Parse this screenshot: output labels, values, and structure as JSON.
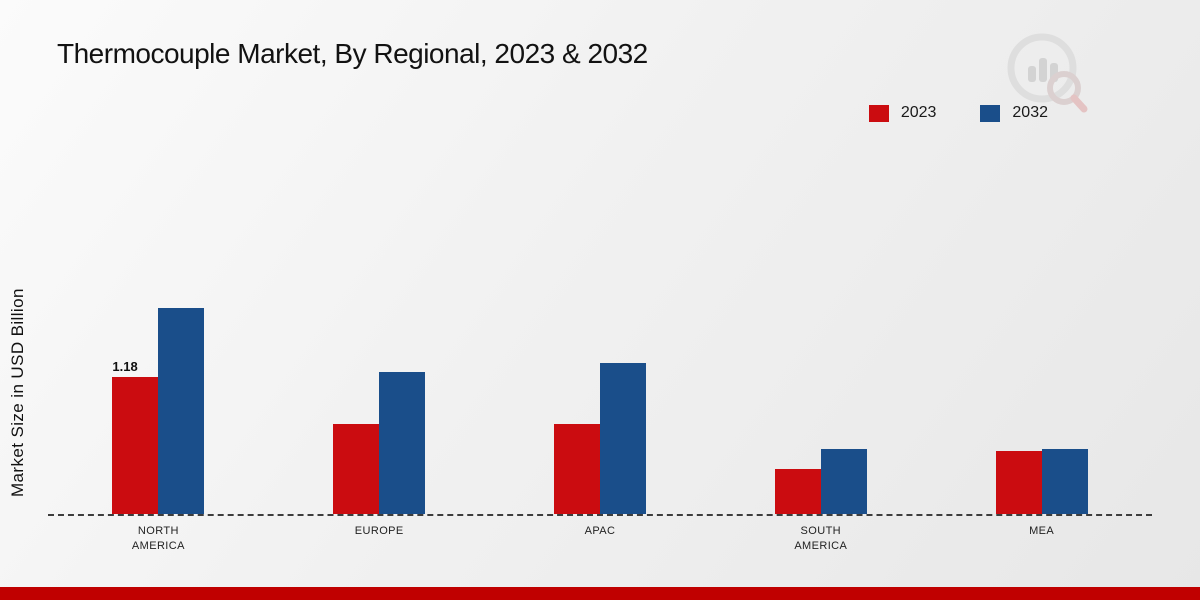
{
  "title": "Thermocouple Market, By Regional, 2023 & 2032",
  "ylabel": "Market Size in USD Billion",
  "footer": {
    "bar_color": "#c00000"
  },
  "chart_data": {
    "type": "bar",
    "title": "Thermocouple Market, By Regional, 2023 & 2032",
    "xlabel": "",
    "ylabel": "Market Size in USD Billion",
    "categories": [
      "NORTH AMERICA",
      "EUROPE",
      "APAC",
      "SOUTH AMERICA",
      "MEA"
    ],
    "series": [
      {
        "name": "2023",
        "color": "#cb0c10",
        "values": [
          1.18,
          0.78,
          0.78,
          0.39,
          0.54
        ]
      },
      {
        "name": "2032",
        "color": "#1a4e8a",
        "values": [
          1.78,
          1.22,
          1.3,
          0.56,
          0.56
        ]
      }
    ],
    "data_labels": [
      {
        "series_index": 0,
        "category_index": 0,
        "text": "1.18"
      }
    ],
    "ylim": [
      0,
      2.0
    ],
    "grid": false,
    "baseline_style": "dashed",
    "legend_position": "top-right"
  }
}
